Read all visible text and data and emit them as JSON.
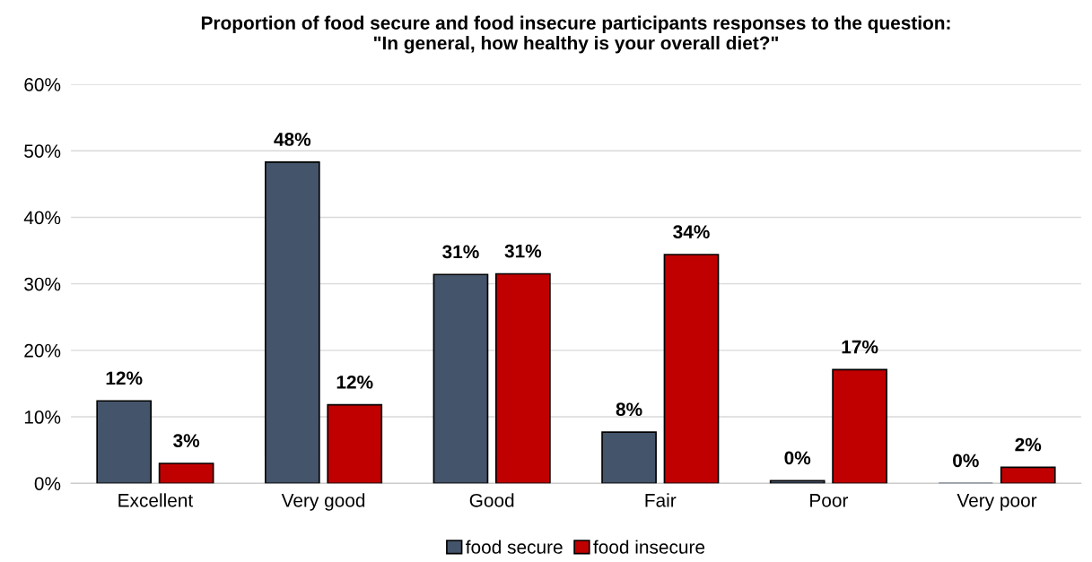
{
  "chart_data": {
    "type": "bar",
    "title": "Proportion of food secure and food insecure participants responses to the question:\n\"In general, how healthy is your overall diet?\"",
    "categories": [
      "Excellent",
      "Very good",
      "Good",
      "Fair",
      "Poor",
      "Very poor"
    ],
    "series": [
      {
        "name": "food secure",
        "color": "#44546a",
        "values": [
          12.4,
          48.3,
          31.4,
          7.7,
          0.4,
          0
        ],
        "value_labels": [
          "12%",
          "48%",
          "31%",
          "8%",
          "0%",
          "0%"
        ]
      },
      {
        "name": "food insecure",
        "color": "#c00000",
        "values": [
          3.0,
          11.8,
          31.5,
          34.4,
          17.1,
          2.4
        ],
        "value_labels": [
          "3%",
          "12%",
          "31%",
          "34%",
          "17%",
          "2%"
        ]
      }
    ],
    "ylim": [
      0,
      60
    ],
    "yticks": [
      {
        "value": 0,
        "label": "0%"
      },
      {
        "value": 10,
        "label": "10%"
      },
      {
        "value": 20,
        "label": "20%"
      },
      {
        "value": 30,
        "label": "30%"
      },
      {
        "value": 40,
        "label": "40%"
      },
      {
        "value": 50,
        "label": "50%"
      },
      {
        "value": 60,
        "label": "60%"
      }
    ],
    "grid": "y",
    "legend": "bottom"
  }
}
